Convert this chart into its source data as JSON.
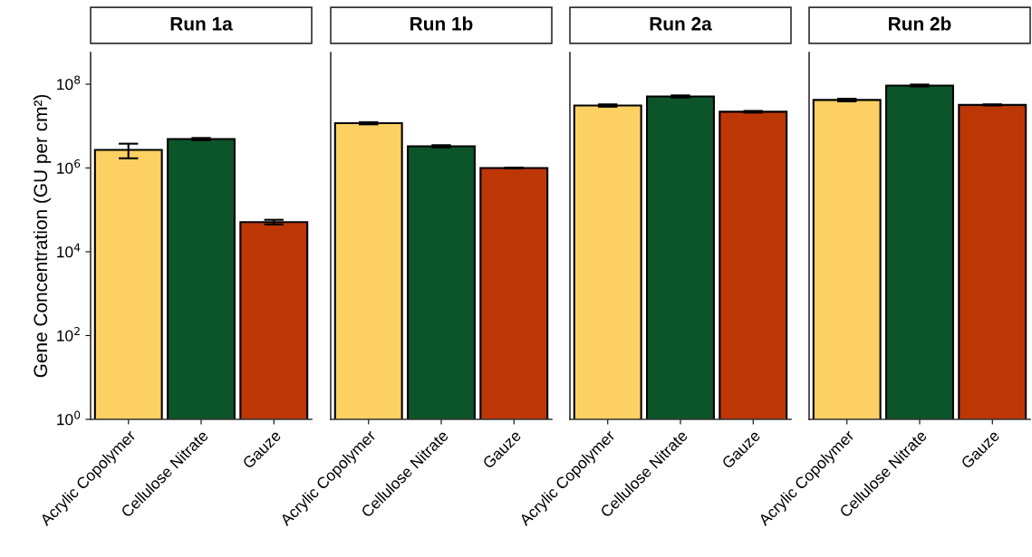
{
  "chart_data": [
    {
      "type": "bar",
      "title": "Run 1a",
      "ylabel": "Gene Concentration (GU per cm²)",
      "categories": [
        "Acrylic Copolymer",
        "Cellulose Nitrate",
        "Gauze"
      ],
      "values": [
        2700000,
        4900000,
        51000
      ],
      "errors": [
        [
          1700000,
          3800000
        ],
        [
          4600000,
          5200000
        ],
        [
          45000,
          58000
        ]
      ],
      "colors": [
        "#fdd063",
        "#0c552a",
        "#bd3706"
      ],
      "log": true,
      "ylim": [
        1,
        570000000
      ],
      "yticks": [
        {
          "value": 1,
          "label": "10$^{0}$"
        },
        {
          "value": 100,
          "label": "10$^{2}$"
        },
        {
          "value": 10000,
          "label": "10$^{4}$"
        },
        {
          "value": 1000000,
          "label": "10$^{6}$"
        },
        {
          "value": 100000000,
          "label": "10$^{8}$"
        }
      ]
    },
    {
      "type": "bar",
      "title": "Run 1b",
      "categories": [
        "Acrylic Copolymer",
        "Cellulose Nitrate",
        "Gauze"
      ],
      "values": [
        11700000,
        3300000,
        1000000
      ],
      "errors": [
        [
          11000000,
          12400000
        ],
        [
          3100000,
          3500000
        ],
        [
          980000,
          1020000
        ]
      ],
      "colors": [
        "#fdd063",
        "#0c552a",
        "#bd3706"
      ],
      "log": true,
      "ylim": [
        1,
        570000000
      ],
      "tick_labels": "x"
    },
    {
      "type": "bar",
      "title": "Run 2a",
      "categories": [
        "Acrylic Copolymer",
        "Cellulose Nitrate",
        "Gauze"
      ],
      "values": [
        31000000,
        51000000,
        22000000
      ],
      "errors": [
        [
          29000000,
          33000000
        ],
        [
          48000000,
          54000000
        ],
        [
          21000000,
          23000000
        ]
      ],
      "colors": [
        "#fdd063",
        "#0c552a",
        "#bd3706"
      ],
      "log": true,
      "ylim": [
        1,
        570000000
      ],
      "tick_labels": "x"
    },
    {
      "type": "bar",
      "title": "Run 2b",
      "categories": [
        "Acrylic Copolymer",
        "Cellulose Nitrate",
        "Gauze"
      ],
      "values": [
        42000000,
        93000000,
        32000000
      ],
      "errors": [
        [
          39000000,
          45000000
        ],
        [
          88000000,
          98000000
        ],
        [
          31000000,
          33000000
        ]
      ],
      "colors": [
        "#fdd063",
        "#0c552a",
        "#bd3706"
      ],
      "log": true,
      "ylim": [
        1,
        570000000
      ],
      "tick_labels": "x"
    }
  ]
}
